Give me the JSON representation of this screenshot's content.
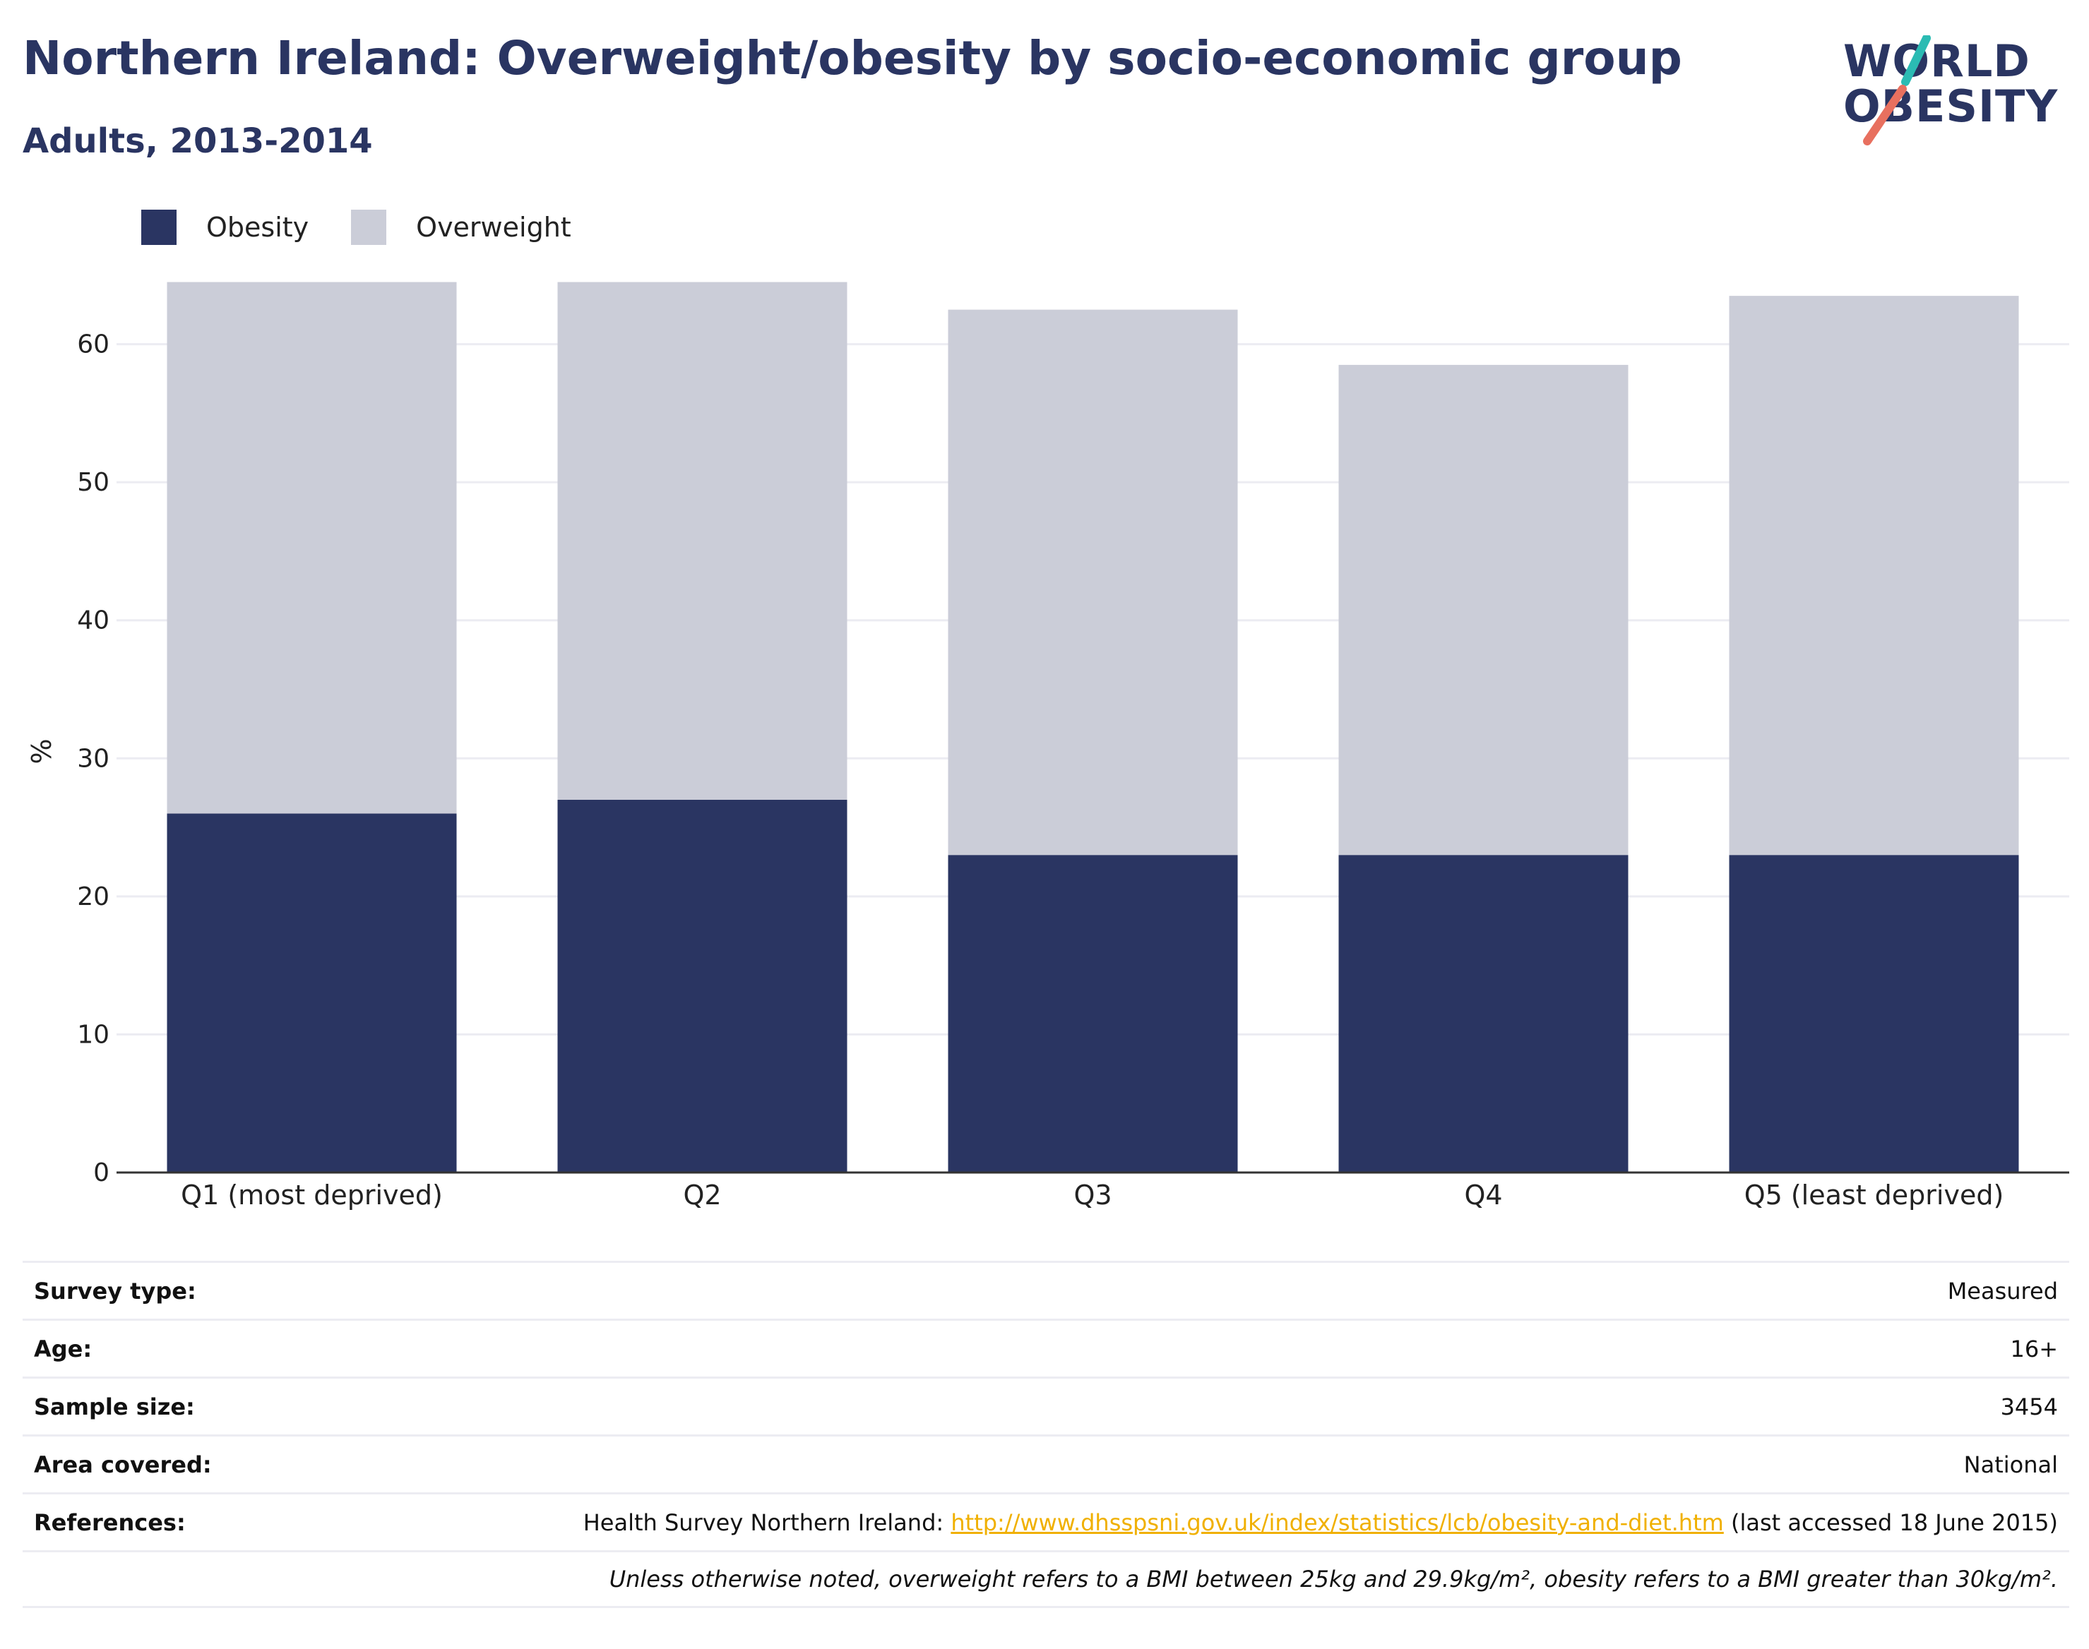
{
  "title": "Northern Ireland: Overweight/obesity by socio-economic group",
  "subtitle": "Adults, 2013-2014",
  "logo": {
    "line1": "WORLD",
    "line2": "OBESITY",
    "slash_colors": [
      "#2bbbb3",
      "#e8705f"
    ]
  },
  "colors": {
    "obesity": "#2a3562",
    "overweight": "#cbcdd8",
    "grid": "#ececf2",
    "axis": "#333333"
  },
  "chart_data": {
    "type": "bar",
    "stacked": true,
    "categories": [
      "Q1 (most deprived)",
      "Q2",
      "Q3",
      "Q4",
      "Q5 (least deprived)"
    ],
    "series": [
      {
        "name": "Obesity",
        "values": [
          26,
          27,
          23,
          23,
          23
        ]
      },
      {
        "name": "Overweight",
        "values": [
          38.5,
          37.5,
          39.5,
          35.5,
          40.5
        ]
      }
    ],
    "ylabel": "%",
    "ylim": [
      0,
      70
    ],
    "yticks": [
      0,
      10,
      20,
      30,
      40,
      50,
      60
    ],
    "grid": true,
    "legend": "top-left"
  },
  "info": {
    "rows": [
      {
        "label": "Survey type:",
        "value": "Measured"
      },
      {
        "label": "Age:",
        "value": "16+"
      },
      {
        "label": "Sample size:",
        "value": "3454"
      },
      {
        "label": "Area covered:",
        "value": "National"
      }
    ],
    "references": {
      "label": "References:",
      "prefix": "Health Survey Northern Ireland: ",
      "link": "http://www.dhsspsni.gov.uk/index/statistics/lcb/obesity-and-diet.htm",
      "suffix": " (last accessed 18 June 2015)"
    },
    "note": "Unless otherwise noted, overweight refers to a BMI between 25kg and 29.9kg/m², obesity refers to a BMI greater than 30kg/m²."
  }
}
